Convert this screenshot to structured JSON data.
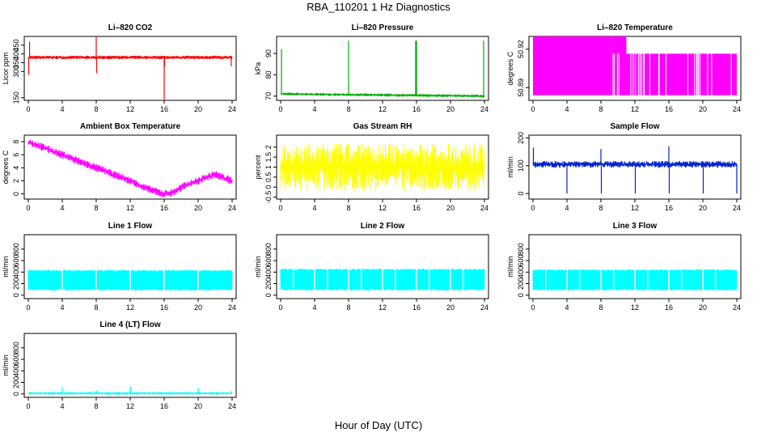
{
  "figure": {
    "title": "RBA_110201  1 Hz Diagnostics",
    "xlabel": "Hour of Day (UTC)"
  },
  "chart_data": [
    {
      "type": "line",
      "title": "Li–820 CO2",
      "ylabel": "Licor ppm",
      "color": "#ff0000",
      "xlim": [
        0,
        24
      ],
      "xticks": [
        0,
        4,
        8,
        12,
        16,
        20,
        24
      ],
      "ylim": [
        135,
        500
      ],
      "yticks": [
        150,
        300,
        350,
        400,
        450
      ],
      "baseline": 380,
      "noise": 10,
      "spikes": [
        [
          0.05,
          280
        ],
        [
          0.15,
          470
        ],
        [
          8.0,
          500
        ],
        [
          8.05,
          290
        ],
        [
          16.0,
          140
        ],
        [
          16.05,
          330
        ],
        [
          23.9,
          330
        ]
      ]
    },
    {
      "type": "line",
      "title": "Li–820 Pressure",
      "ylabel": "kPa",
      "color": "#00aa00",
      "xlim": [
        0,
        24
      ],
      "xticks": [
        0,
        4,
        8,
        12,
        16,
        20,
        24
      ],
      "ylim": [
        68,
        98
      ],
      "yticks": [
        70,
        80,
        90
      ],
      "baseline": 70.6,
      "drift": [
        [
          0,
          71.0
        ],
        [
          24,
          70.0
        ]
      ],
      "noise": 0.3,
      "spikes": [
        [
          0.1,
          92
        ],
        [
          8.0,
          96
        ],
        [
          15.9,
          96
        ],
        [
          16.0,
          96
        ],
        [
          23.9,
          96
        ]
      ]
    },
    {
      "type": "area",
      "title": "Li–820 Temperature",
      "ylabel": "degrees C",
      "color": "#ff00ff",
      "xlim": [
        0,
        24
      ],
      "xticks": [
        0,
        4,
        8,
        12,
        16,
        20,
        24
      ],
      "ylim": [
        50.88,
        50.93
      ],
      "yticks": [
        50.89,
        50.92
      ],
      "bands": [
        [
          0,
          9.2,
          50.884,
          50.93
        ],
        [
          9.2,
          11,
          50.884,
          50.93
        ],
        [
          11,
          24,
          50.884,
          50.9165
        ]
      ]
    },
    {
      "type": "line",
      "title": "Ambient Box Temperature",
      "ylabel": "degrees C",
      "color": "#ff00ff",
      "xlim": [
        0,
        24
      ],
      "xticks": [
        0,
        4,
        8,
        12,
        16,
        20,
        24
      ],
      "ylim": [
        -0.8,
        9
      ],
      "yticks": [
        0,
        2,
        4,
        6,
        8
      ],
      "curve": [
        [
          0,
          8.0
        ],
        [
          2,
          7.0
        ],
        [
          4,
          6.0
        ],
        [
          6,
          5.0
        ],
        [
          8,
          4.0
        ],
        [
          10,
          3.0
        ],
        [
          12,
          2.0
        ],
        [
          14,
          0.8
        ],
        [
          16,
          0.0
        ],
        [
          17,
          0.2
        ],
        [
          18,
          1.0
        ],
        [
          20,
          2.0
        ],
        [
          22,
          3.0
        ],
        [
          24,
          2.0
        ]
      ],
      "noise": 0.6
    },
    {
      "type": "line",
      "title": "Gas Stream RH",
      "ylabel": "percent",
      "color": "#ffff00",
      "xlim": [
        0,
        24
      ],
      "xticks": [
        0,
        4,
        8,
        12,
        16,
        20,
        24
      ],
      "ylim": [
        -0.6,
        2.6
      ],
      "yticks": [
        -0.5,
        0.0,
        0.5,
        1.0,
        1.5,
        2.0
      ],
      "baseline": 1.0,
      "noise": 1.2
    },
    {
      "type": "line",
      "title": "Sample Flow",
      "ylabel": "ml/min",
      "color": "#0022cc",
      "xlim": [
        0,
        24
      ],
      "xticks": [
        0,
        4,
        8,
        12,
        16,
        20,
        24
      ],
      "ylim": [
        -20,
        210
      ],
      "yticks": [
        0,
        100,
        200
      ],
      "baseline": 105,
      "noise": 12,
      "spikes": [
        [
          0.05,
          165
        ],
        [
          4.0,
          0
        ],
        [
          8.0,
          160
        ],
        [
          8.05,
          0
        ],
        [
          12.0,
          115
        ],
        [
          12.05,
          0
        ],
        [
          16.0,
          170
        ],
        [
          16.05,
          0
        ],
        [
          20.0,
          110
        ],
        [
          20.05,
          0
        ],
        [
          24.0,
          0
        ]
      ]
    },
    {
      "type": "line",
      "title": "Line 1 Flow",
      "ylabel": "ml/min",
      "color": "#00ffff",
      "xlim": [
        0,
        24
      ],
      "xticks": [
        0,
        4,
        8,
        12,
        16,
        20,
        24
      ],
      "ylim": [
        -60,
        1050
      ],
      "yticks": [
        0,
        200,
        400,
        600,
        800
      ],
      "band": [
        80,
        440
      ],
      "gaps": [
        4,
        8,
        12,
        16,
        20
      ]
    },
    {
      "type": "line",
      "title": "Line 2 Flow",
      "ylabel": "ml/min",
      "color": "#00ffff",
      "xlim": [
        0,
        24
      ],
      "xticks": [
        0,
        4,
        8,
        12,
        16,
        20,
        24
      ],
      "ylim": [
        -60,
        1050
      ],
      "yticks": [
        0,
        200,
        400,
        600,
        800
      ],
      "band": [
        80,
        460
      ],
      "gaps": [
        1.5,
        4,
        5.5,
        8,
        9.5,
        12,
        13.5,
        16,
        17.5,
        20,
        21.5
      ]
    },
    {
      "type": "line",
      "title": "Line 3 Flow",
      "ylabel": "ml/min",
      "color": "#00ffff",
      "xlim": [
        0,
        24
      ],
      "xticks": [
        0,
        4,
        8,
        12,
        16,
        20,
        24
      ],
      "ylim": [
        -60,
        1050
      ],
      "yticks": [
        0,
        200,
        400,
        600,
        800
      ],
      "band": [
        80,
        450
      ],
      "gaps": [
        1.5,
        4,
        5.5,
        8,
        9.5,
        12,
        13.5,
        16,
        17.5,
        20,
        21.5
      ]
    },
    {
      "type": "line",
      "title": "Line 4 (LT) Flow",
      "ylabel": "ml/min",
      "color": "#00ffff",
      "xlim": [
        0,
        24
      ],
      "xticks": [
        0,
        4,
        8,
        12,
        16,
        20,
        24
      ],
      "ylim": [
        -60,
        1050
      ],
      "yticks": [
        0,
        200,
        400,
        600,
        800
      ],
      "baseline": 10,
      "noise": 10,
      "spikes": [
        [
          4.0,
          120
        ],
        [
          8.0,
          70
        ],
        [
          12.0,
          60
        ],
        [
          12.05,
          130
        ],
        [
          15.5,
          40
        ],
        [
          20.0,
          110
        ],
        [
          23.9,
          50
        ]
      ]
    }
  ]
}
